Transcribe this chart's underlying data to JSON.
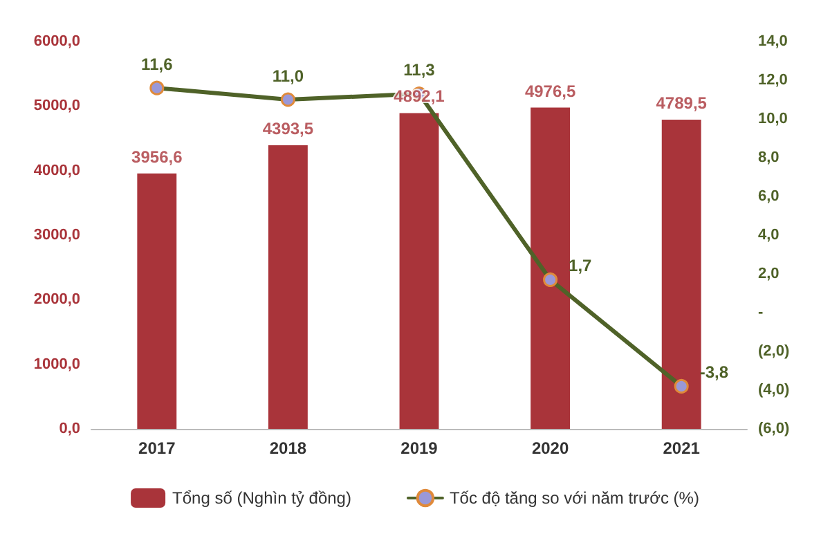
{
  "chart_data": {
    "type": "bar",
    "categories": [
      "2017",
      "2018",
      "2019",
      "2020",
      "2021"
    ],
    "series": [
      {
        "name": "Tổng số (Nghìn tỷ đồng)",
        "color": "#a9343a",
        "values": [
          3956.6,
          4393.5,
          4892.1,
          4976.5,
          4789.5
        ],
        "value_labels": [
          "3956,6",
          "4393,5",
          "4892,1",
          "4976,5",
          "4789,5"
        ]
      },
      {
        "name": "Tốc độ tăng so với năm trước (%)",
        "type": "line",
        "axis": "y2",
        "color": "#4f6228",
        "values": [
          11.6,
          11.0,
          11.3,
          1.7,
          -3.8
        ],
        "value_labels": [
          "11,6",
          "11,0",
          "11,3",
          "1,7",
          "-3,8"
        ]
      }
    ],
    "ylim": [
      0,
      6000
    ],
    "yticks": [
      {
        "value": 0,
        "label": "0,0"
      },
      {
        "value": 1000,
        "label": "1000,0"
      },
      {
        "value": 2000,
        "label": "2000,0"
      },
      {
        "value": 3000,
        "label": "3000,0"
      },
      {
        "value": 4000,
        "label": "4000,0"
      },
      {
        "value": 5000,
        "label": "5000,0"
      },
      {
        "value": 6000,
        "label": "6000,0"
      }
    ],
    "y2lim": [
      -6,
      14
    ],
    "y2ticks": [
      {
        "value": -6,
        "label": "(6,0)"
      },
      {
        "value": -4,
        "label": "(4,0)"
      },
      {
        "value": -2,
        "label": "(2,0)"
      },
      {
        "value": 0,
        "label": "-"
      },
      {
        "value": 2,
        "label": "2,0"
      },
      {
        "value": 4,
        "label": "4,0"
      },
      {
        "value": 6,
        "label": "6,0"
      },
      {
        "value": 8,
        "label": "8,0"
      },
      {
        "value": 10,
        "label": "10,0"
      },
      {
        "value": 12,
        "label": "12,0"
      },
      {
        "value": 14,
        "label": "14,0"
      }
    ],
    "legend": "bottom",
    "grid": false,
    "marker": "circle"
  }
}
